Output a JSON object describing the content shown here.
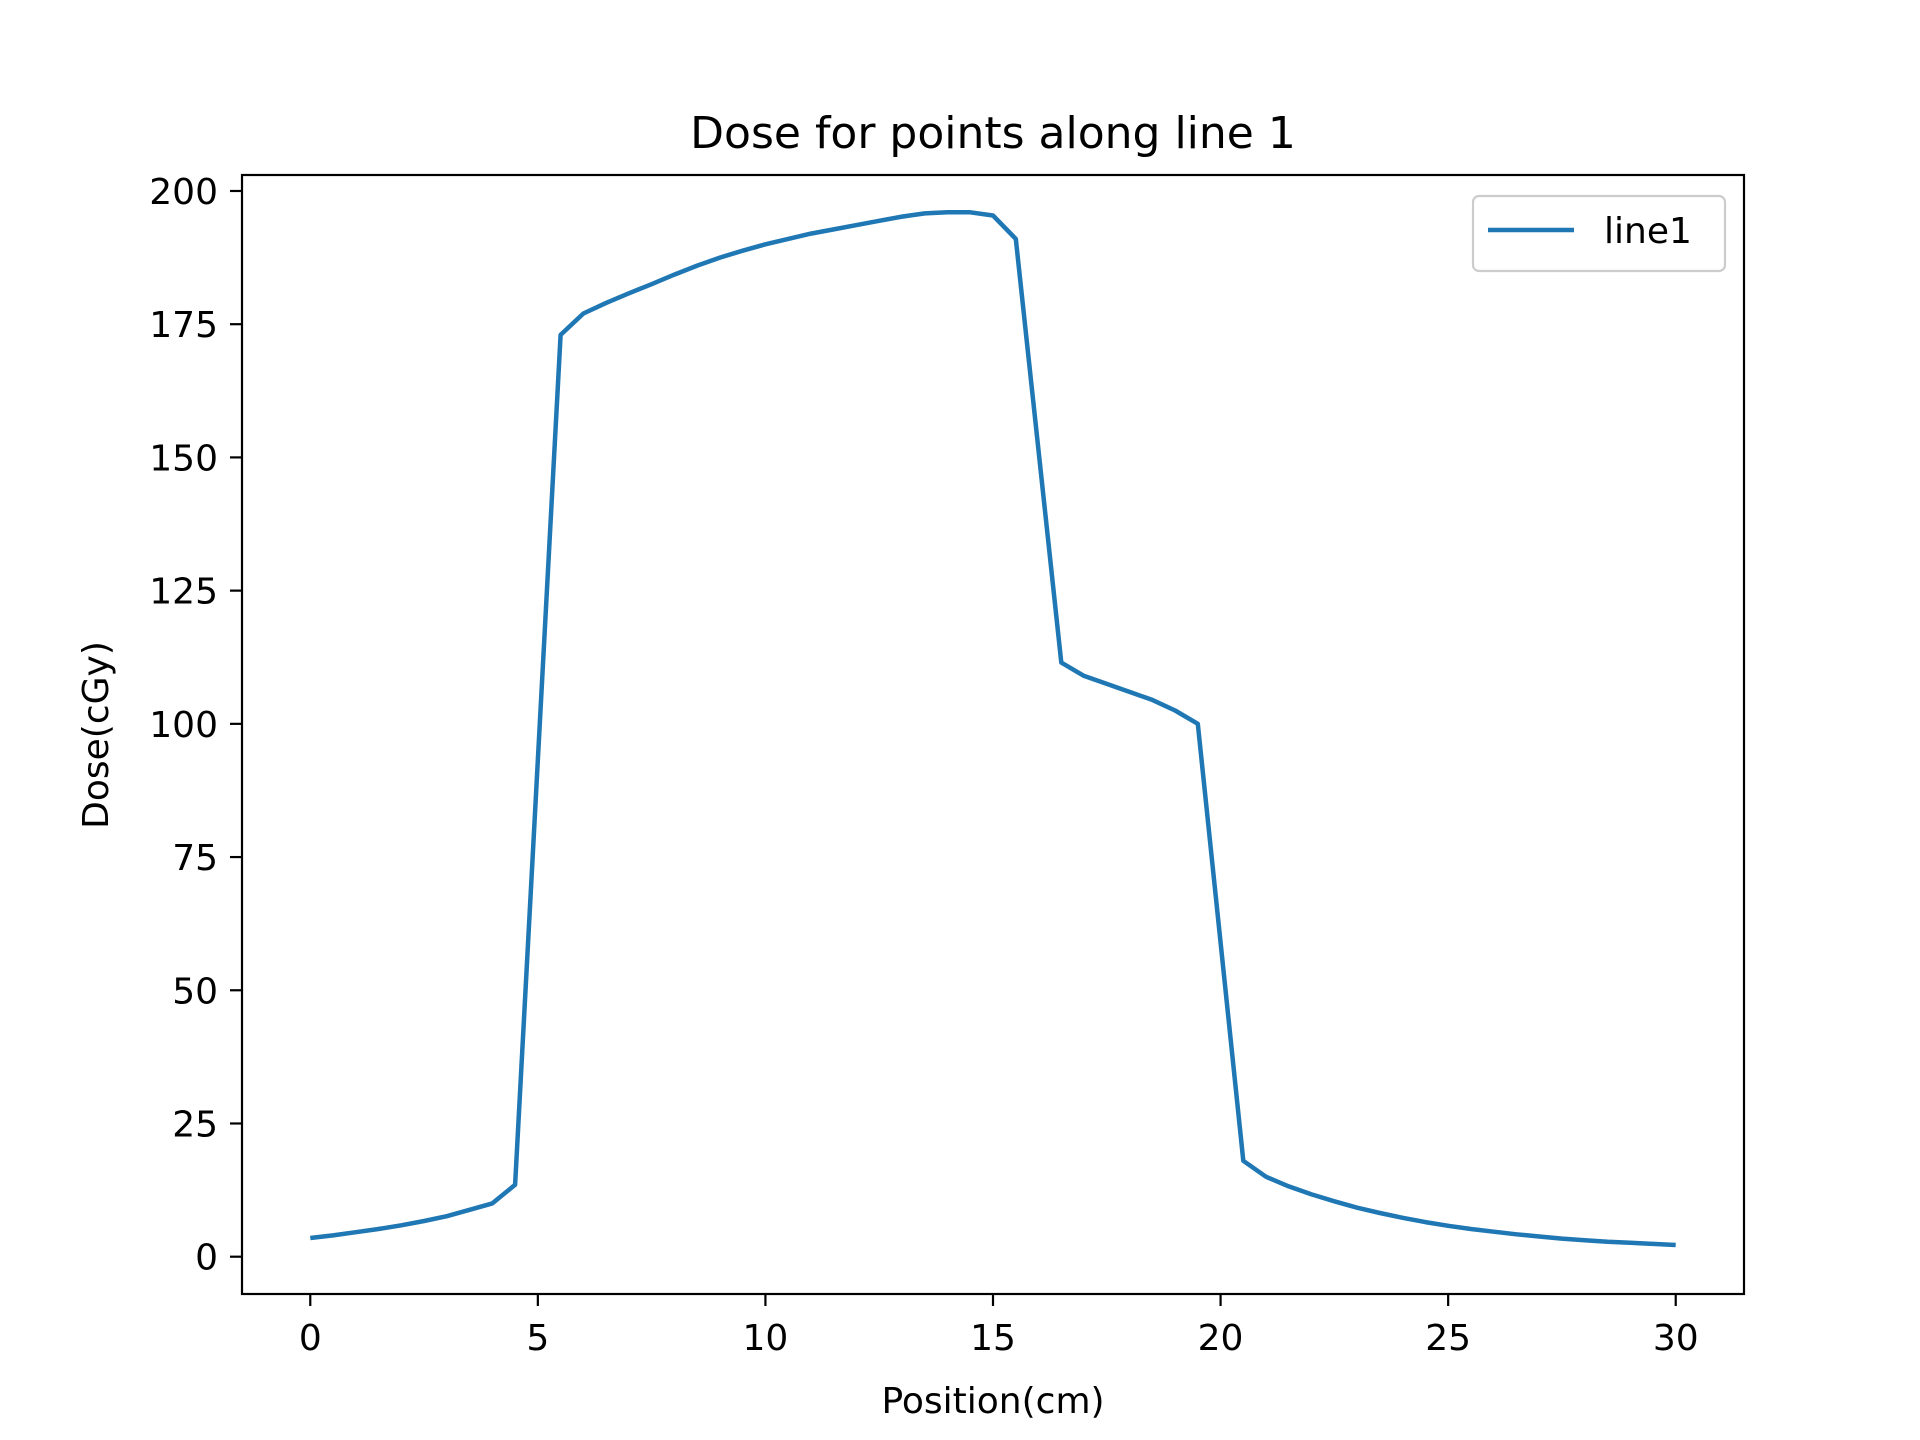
{
  "chart_data": {
    "type": "line",
    "title": "Dose for points along line 1",
    "xlabel": "Position(cm)",
    "ylabel": "Dose(cGy)",
    "xlim": [
      -1.5,
      31.5
    ],
    "ylim": [
      -7,
      203
    ],
    "xticks": [
      0,
      5,
      10,
      15,
      20,
      25,
      30
    ],
    "yticks": [
      0,
      25,
      50,
      75,
      100,
      125,
      150,
      175,
      200
    ],
    "grid": false,
    "legend_position": "top-right",
    "series": [
      {
        "name": "line1",
        "color": "#1f77b4",
        "x": [
          0,
          0.5,
          1,
          1.5,
          2,
          2.5,
          3,
          3.5,
          4,
          4.5,
          5.5,
          6,
          6.5,
          7,
          7.5,
          8,
          8.5,
          9,
          9.5,
          10,
          10.5,
          11,
          11.5,
          12,
          12.5,
          13,
          13.5,
          14,
          14.5,
          15,
          15.5,
          16.5,
          17,
          17.5,
          18,
          18.5,
          19,
          19.5,
          20.5,
          21,
          21.5,
          22,
          22.5,
          23,
          23.5,
          24,
          24.5,
          25,
          25.5,
          26,
          26.5,
          27,
          27.5,
          28,
          28.5,
          29,
          29.5,
          30
        ],
        "y": [
          3.5,
          4.0,
          4.6,
          5.2,
          5.9,
          6.7,
          7.6,
          8.8,
          10.0,
          13.5,
          173.0,
          177.0,
          179.0,
          180.8,
          182.5,
          184.3,
          186.0,
          187.5,
          188.8,
          190.0,
          191.0,
          192.0,
          192.8,
          193.6,
          194.4,
          195.2,
          195.8,
          196.0,
          196.0,
          195.4,
          191.0,
          111.5,
          109.0,
          107.5,
          106.0,
          104.5,
          102.5,
          100.0,
          18.0,
          15.0,
          13.2,
          11.7,
          10.4,
          9.2,
          8.2,
          7.3,
          6.5,
          5.8,
          5.2,
          4.7,
          4.2,
          3.8,
          3.4,
          3.1,
          2.8,
          2.6,
          2.4,
          2.2
        ]
      }
    ]
  }
}
